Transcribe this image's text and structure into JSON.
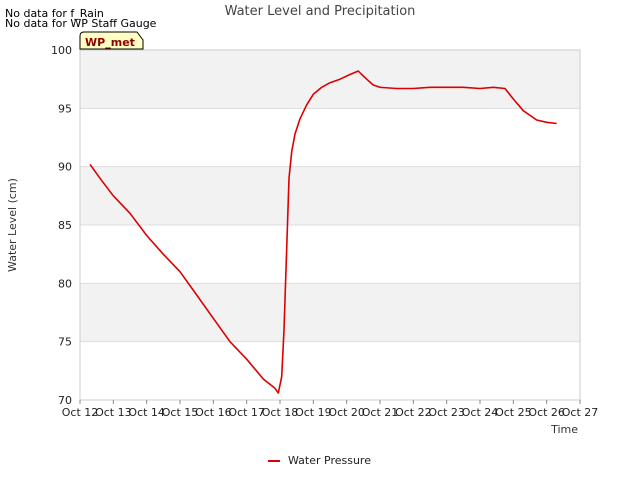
{
  "notices": [
    "No data for f_Rain",
    "No data for WP Staff Gauge"
  ],
  "site_badge": "WP_met",
  "chart_data": {
    "type": "line",
    "title": "Water Level and Precipitation",
    "xlabel": "Time",
    "ylabel": "Water Level (cm)",
    "xlim": [
      12,
      27
    ],
    "ylim": [
      70,
      100
    ],
    "x_ticks": [
      12,
      13,
      14,
      15,
      16,
      17,
      18,
      19,
      20,
      21,
      22,
      23,
      24,
      25,
      26,
      27
    ],
    "x_tick_labels": [
      "Oct 12",
      "Oct 13",
      "Oct 14",
      "Oct 15",
      "Oct 16",
      "Oct 17",
      "Oct 18",
      "Oct 19",
      "Oct 20",
      "Oct 21",
      "Oct 22",
      "Oct 23",
      "Oct 24",
      "Oct 25",
      "Oct 26",
      "Oct 27"
    ],
    "y_ticks": [
      70,
      75,
      80,
      85,
      90,
      95,
      100
    ],
    "grid": true,
    "legend_position": "bottom-center",
    "series": [
      {
        "name": "Water Pressure",
        "color": "#dd0000",
        "x": [
          12.3,
          12.6,
          13.0,
          13.5,
          14.0,
          14.5,
          15.0,
          15.5,
          16.0,
          16.5,
          17.0,
          17.5,
          17.85,
          17.95,
          18.05,
          18.12,
          18.2,
          18.27,
          18.35,
          18.45,
          18.6,
          18.8,
          19.0,
          19.25,
          19.5,
          19.8,
          20.1,
          20.35,
          20.45,
          20.6,
          20.8,
          21.0,
          21.5,
          22.0,
          22.5,
          23.0,
          23.5,
          24.0,
          24.4,
          24.75,
          25.0,
          25.3,
          25.7,
          26.0,
          26.3
        ],
        "y": [
          90.2,
          89.0,
          87.5,
          86.0,
          84.1,
          82.5,
          81.0,
          79.0,
          77.0,
          75.0,
          73.5,
          71.8,
          71.0,
          70.6,
          72.0,
          76.0,
          83.0,
          89.0,
          91.3,
          92.8,
          94.1,
          95.3,
          96.2,
          96.8,
          97.2,
          97.5,
          97.9,
          98.2,
          97.9,
          97.5,
          97.0,
          96.8,
          96.7,
          96.7,
          96.8,
          96.8,
          96.8,
          96.7,
          96.8,
          96.7,
          95.8,
          94.8,
          94.0,
          93.8,
          93.7
        ]
      }
    ]
  }
}
